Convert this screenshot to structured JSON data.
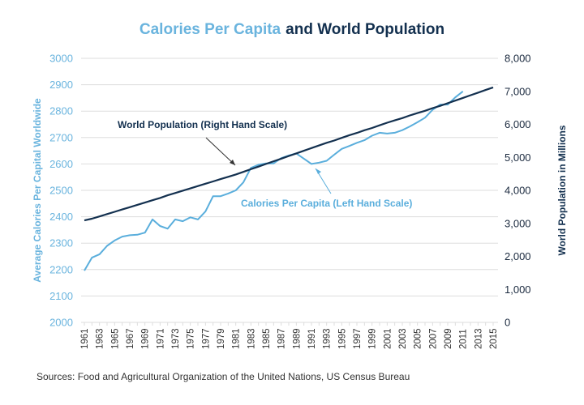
{
  "chart_data": {
    "type": "line",
    "title": {
      "part1": "Calories Per Capita",
      "part2": "and World Population"
    },
    "x": [
      1961,
      1962,
      1963,
      1964,
      1965,
      1966,
      1967,
      1968,
      1969,
      1970,
      1971,
      1972,
      1973,
      1974,
      1975,
      1976,
      1977,
      1978,
      1979,
      1980,
      1981,
      1982,
      1983,
      1984,
      1985,
      1986,
      1987,
      1988,
      1989,
      1990,
      1991,
      1992,
      1993,
      1994,
      1995,
      1996,
      1997,
      1998,
      1999,
      2000,
      2001,
      2002,
      2003,
      2004,
      2005,
      2006,
      2007,
      2008,
      2009,
      2010,
      2011,
      2012,
      2013,
      2014,
      2015
    ],
    "x_tick_labels": [
      "1961",
      "1963",
      "1965",
      "1967",
      "1969",
      "1971",
      "1973",
      "1975",
      "1977",
      "1979",
      "1981",
      "1983",
      "1985",
      "1987",
      "1989",
      "1991",
      "1993",
      "1995",
      "1997",
      "1999",
      "2001",
      "2003",
      "2005",
      "2007",
      "2009",
      "2011",
      "2013",
      "2015"
    ],
    "series": [
      {
        "name": "Calories Per Capita",
        "axis": "left",
        "color": "#5aaedc",
        "x": [
          1961,
          1962,
          1963,
          1964,
          1965,
          1966,
          1967,
          1968,
          1969,
          1970,
          1971,
          1972,
          1973,
          1974,
          1975,
          1976,
          1977,
          1978,
          1979,
          1980,
          1981,
          1982,
          1983,
          1984,
          1985,
          1986,
          1987,
          1988,
          1989,
          1990,
          1991,
          1992,
          1993,
          1994,
          1995,
          1996,
          1997,
          1998,
          1999,
          2000,
          2001,
          2002,
          2003,
          2004,
          2005,
          2006,
          2007,
          2008,
          2009,
          2010,
          2011
        ],
        "values": [
          2196,
          2245,
          2258,
          2290,
          2310,
          2325,
          2330,
          2332,
          2340,
          2390,
          2365,
          2355,
          2390,
          2383,
          2398,
          2390,
          2420,
          2478,
          2478,
          2488,
          2500,
          2530,
          2585,
          2597,
          2602,
          2602,
          2622,
          2632,
          2640,
          2620,
          2600,
          2605,
          2612,
          2635,
          2657,
          2668,
          2680,
          2690,
          2707,
          2718,
          2715,
          2718,
          2728,
          2742,
          2758,
          2775,
          2805,
          2825,
          2825,
          2852,
          2875
        ]
      },
      {
        "name": "World Population",
        "axis": "right",
        "color": "#13304f",
        "x": [
          1961,
          1962,
          1963,
          1964,
          1965,
          1966,
          1967,
          1968,
          1969,
          1970,
          1971,
          1972,
          1973,
          1974,
          1975,
          1976,
          1977,
          1978,
          1979,
          1980,
          1981,
          1982,
          1983,
          1984,
          1985,
          1986,
          1987,
          1988,
          1989,
          1990,
          1991,
          1992,
          1993,
          1994,
          1995,
          1996,
          1997,
          1998,
          1999,
          2000,
          2001,
          2002,
          2003,
          2004,
          2005,
          2006,
          2007,
          2008,
          2009,
          2010,
          2011,
          2012,
          2013,
          2014,
          2015
        ],
        "values": [
          3090,
          3140,
          3210,
          3280,
          3350,
          3420,
          3490,
          3560,
          3630,
          3700,
          3770,
          3850,
          3920,
          3990,
          4060,
          4130,
          4200,
          4270,
          4340,
          4410,
          4480,
          4560,
          4640,
          4720,
          4800,
          4880,
          4960,
          5040,
          5120,
          5200,
          5280,
          5360,
          5440,
          5510,
          5590,
          5670,
          5740,
          5820,
          5890,
          5970,
          6050,
          6120,
          6190,
          6270,
          6340,
          6410,
          6490,
          6560,
          6640,
          6720,
          6800,
          6880,
          6960,
          7040,
          7120
        ]
      }
    ],
    "left_axis": {
      "label": "Average Calories Per Capital Worldwide",
      "range": [
        2000,
        3000
      ],
      "ticks": [
        "2000",
        "2100",
        "2200",
        "2300",
        "2400",
        "2500",
        "2600",
        "2700",
        "2800",
        "2900",
        "3000"
      ]
    },
    "right_axis": {
      "label": "World Population in Millions",
      "range": [
        0,
        8000
      ],
      "ticks": [
        "0",
        "1,000",
        "2,000",
        "3,000",
        "4,000",
        "5,000",
        "6,000",
        "7,000",
        "8,000"
      ]
    },
    "annotations": [
      {
        "text": "World Population (Right Hand Scale)",
        "color": "#13304f",
        "points_to": {
          "series": "World Population",
          "x": 1981
        }
      },
      {
        "text": "Calories Per Capita (Left Hand Scale)",
        "color": "#5aaedc",
        "points_to": {
          "series": "Calories Per Capita",
          "x": 1991
        }
      }
    ],
    "grid": true,
    "xlabel": "",
    "colors": {
      "light_blue": "#5aaedc",
      "navy": "#13304f",
      "grid": "#dddddd"
    }
  },
  "footer": {
    "source": "Sources: Food and Agricultural Organization of the United Nations, US Census Bureau"
  }
}
